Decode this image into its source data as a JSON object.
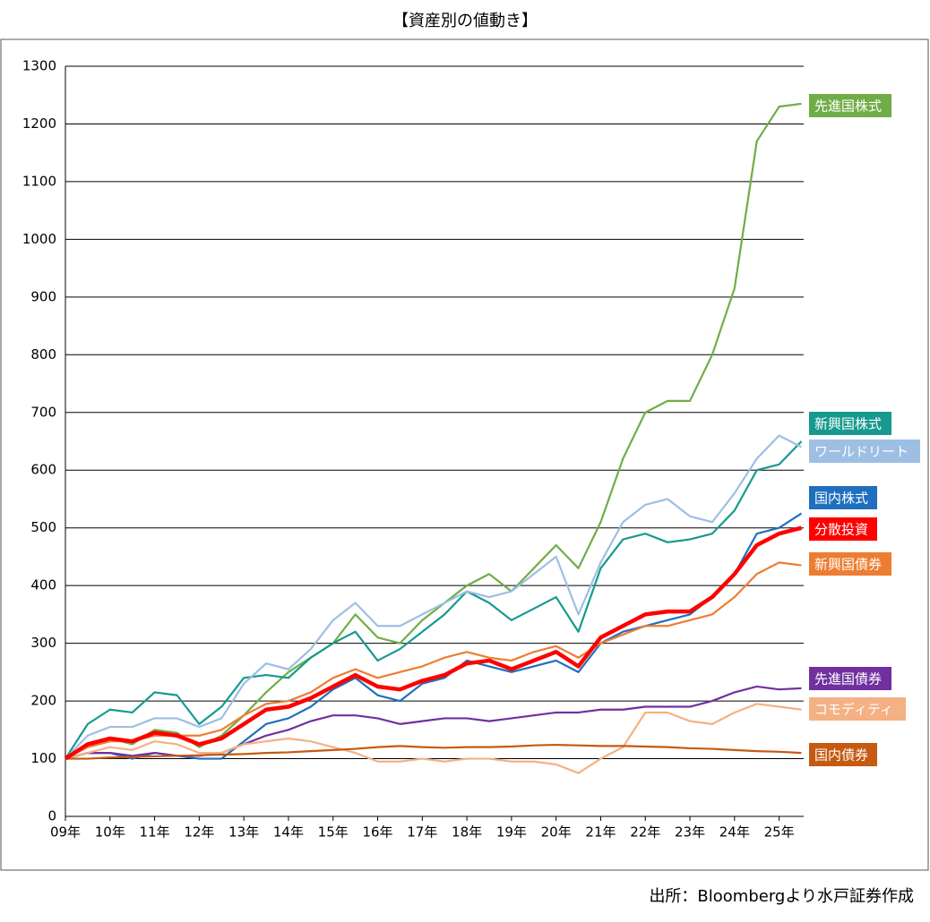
{
  "chart_data": {
    "type": "line",
    "title": "【資産別の値動き】",
    "source": "出所：Bloombergより水戸証券作成",
    "x": [
      2009,
      2009.5,
      2010,
      2010.5,
      2011,
      2011.5,
      2012,
      2012.5,
      2013,
      2013.5,
      2014,
      2014.5,
      2015,
      2015.5,
      2016,
      2016.5,
      2017,
      2017.5,
      2018,
      2018.5,
      2019,
      2019.5,
      2020,
      2020.5,
      2021,
      2021.5,
      2022,
      2022.5,
      2023,
      2023.5,
      2024,
      2024.5,
      2025,
      2025.5
    ],
    "xlim": [
      2009,
      2025.55
    ],
    "xticks": [
      {
        "value": 2009,
        "label": "09年"
      },
      {
        "value": 2010,
        "label": "10年"
      },
      {
        "value": 2011,
        "label": "11年"
      },
      {
        "value": 2012,
        "label": "12年"
      },
      {
        "value": 2013,
        "label": "13年"
      },
      {
        "value": 2014,
        "label": "14年"
      },
      {
        "value": 2015,
        "label": "15年"
      },
      {
        "value": 2016,
        "label": "16年"
      },
      {
        "value": 2017,
        "label": "17年"
      },
      {
        "value": 2018,
        "label": "18年"
      },
      {
        "value": 2019,
        "label": "19年"
      },
      {
        "value": 2020,
        "label": "20年"
      },
      {
        "value": 2021,
        "label": "21年"
      },
      {
        "value": 2022,
        "label": "22年"
      },
      {
        "value": 2023,
        "label": "23年"
      },
      {
        "value": 2024,
        "label": "24年"
      },
      {
        "value": 2025,
        "label": "25年"
      }
    ],
    "ylim": [
      0,
      1300
    ],
    "yticks": [
      0,
      100,
      200,
      300,
      400,
      500,
      600,
      700,
      800,
      900,
      1000,
      1100,
      1200,
      1300
    ],
    "grid": true,
    "series": [
      {
        "name": "先進国株式",
        "color": "#70ad47",
        "values": [
          100,
          125,
          135,
          125,
          150,
          145,
          120,
          140,
          175,
          215,
          250,
          275,
          300,
          350,
          310,
          300,
          340,
          370,
          400,
          420,
          390,
          430,
          470,
          430,
          510,
          620,
          700,
          720,
          720,
          800,
          915,
          1170,
          1230,
          1235
        ]
      },
      {
        "name": "新興国株式",
        "color": "#16998f",
        "values": [
          100,
          160,
          185,
          180,
          215,
          210,
          160,
          190,
          240,
          245,
          240,
          275,
          300,
          320,
          270,
          290,
          320,
          350,
          390,
          370,
          340,
          360,
          380,
          320,
          430,
          480,
          490,
          475,
          480,
          490,
          530,
          600,
          610,
          650
        ]
      },
      {
        "name": "ワールドリート",
        "color": "#9dbfe3",
        "values": [
          100,
          140,
          155,
          155,
          170,
          170,
          155,
          170,
          230,
          265,
          255,
          290,
          340,
          370,
          330,
          330,
          350,
          370,
          390,
          380,
          390,
          420,
          450,
          350,
          440,
          510,
          540,
          550,
          520,
          510,
          560,
          620,
          660,
          640
        ]
      },
      {
        "name": "国内株式",
        "color": "#1f6fbf",
        "values": [
          100,
          110,
          110,
          100,
          110,
          105,
          100,
          100,
          130,
          160,
          170,
          190,
          220,
          240,
          210,
          200,
          230,
          240,
          270,
          260,
          250,
          260,
          270,
          250,
          300,
          320,
          330,
          340,
          350,
          380,
          420,
          490,
          500,
          525
        ]
      },
      {
        "name": "分散投資",
        "color": "#ff0000",
        "values": [
          100,
          125,
          135,
          130,
          145,
          140,
          125,
          135,
          160,
          185,
          190,
          205,
          225,
          245,
          225,
          220,
          235,
          245,
          265,
          270,
          255,
          270,
          285,
          260,
          310,
          330,
          350,
          355,
          355,
          380,
          420,
          470,
          490,
          500
        ]
      },
      {
        "name": "新興国債券",
        "color": "#ed7d31",
        "values": [
          100,
          120,
          130,
          130,
          140,
          140,
          140,
          150,
          175,
          195,
          200,
          215,
          240,
          255,
          240,
          250,
          260,
          275,
          285,
          275,
          270,
          285,
          295,
          275,
          300,
          315,
          330,
          330,
          340,
          350,
          380,
          420,
          440,
          435
        ]
      },
      {
        "name": "先進国債券",
        "color": "#7030a0",
        "values": [
          100,
          110,
          110,
          105,
          110,
          105,
          105,
          110,
          125,
          140,
          150,
          165,
          175,
          175,
          170,
          160,
          165,
          170,
          170,
          165,
          170,
          175,
          180,
          180,
          185,
          185,
          190,
          190,
          190,
          200,
          215,
          225,
          220,
          222
        ]
      },
      {
        "name": "コモディティ",
        "color": "#f4b183",
        "values": [
          100,
          110,
          120,
          115,
          130,
          125,
          110,
          110,
          125,
          130,
          135,
          130,
          120,
          110,
          95,
          95,
          100,
          95,
          100,
          100,
          95,
          95,
          90,
          75,
          100,
          120,
          180,
          180,
          165,
          160,
          180,
          195,
          190,
          185
        ]
      },
      {
        "name": "国内債券",
        "color": "#c55a11",
        "values": [
          100,
          100,
          102,
          103,
          104,
          105,
          106,
          107,
          108,
          110,
          111,
          113,
          115,
          117,
          120,
          122,
          120,
          119,
          120,
          120,
          121,
          123,
          124,
          123,
          122,
          122,
          121,
          120,
          118,
          117,
          115,
          113,
          112,
          110
        ]
      }
    ]
  }
}
